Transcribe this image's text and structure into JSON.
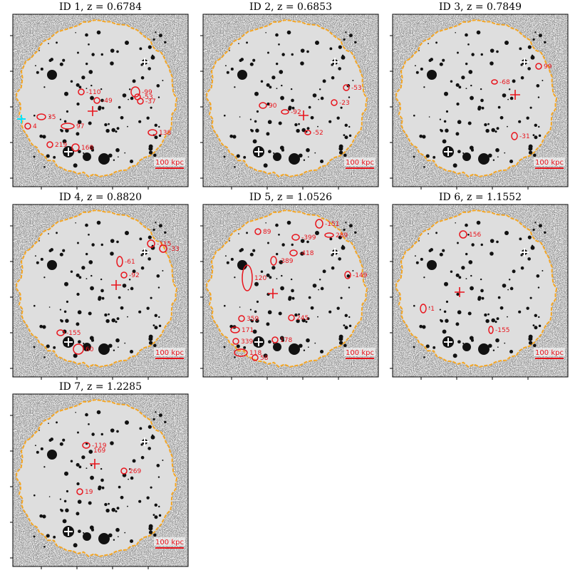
{
  "panels": [
    {
      "title": "ID 1, z = 0.6784",
      "scale_label": "100 kpc",
      "labels": [
        "-110",
        "-49",
        "-99",
        "-53",
        "-37",
        "35",
        "4",
        "97",
        "138",
        "219",
        "168"
      ]
    },
    {
      "title": "ID 2, z = 0.6853",
      "scale_label": "100 kpc",
      "labels": [
        "-53",
        "-23",
        "90",
        "-92",
        "-52"
      ]
    },
    {
      "title": "ID 3, z = 0.7849",
      "scale_label": "100 kpc",
      "labels": [
        "99",
        "-68",
        "-31"
      ]
    },
    {
      "title": "ID 4, z = 0.8820",
      "scale_label": "100 kpc",
      "labels": [
        "-115",
        "-33",
        "-61",
        "-92",
        "-155",
        "60"
      ]
    },
    {
      "title": "ID 5, z = 1.0526",
      "scale_label": "100 kpc",
      "labels": [
        "-151",
        "289",
        "89",
        "-399",
        "-418",
        "-389",
        "120",
        "-149",
        "359",
        "245",
        "171",
        "339",
        "178",
        "118",
        "58"
      ]
    },
    {
      "title": "ID 6, z = 1.1552",
      "scale_label": "100 kpc",
      "labels": [
        "156",
        "-1",
        "-155"
      ]
    },
    {
      "title": "ID 7, z = 1.2285",
      "scale_label": "100 kpc",
      "labels": [
        "-119",
        "169",
        "269",
        "19"
      ]
    }
  ]
}
